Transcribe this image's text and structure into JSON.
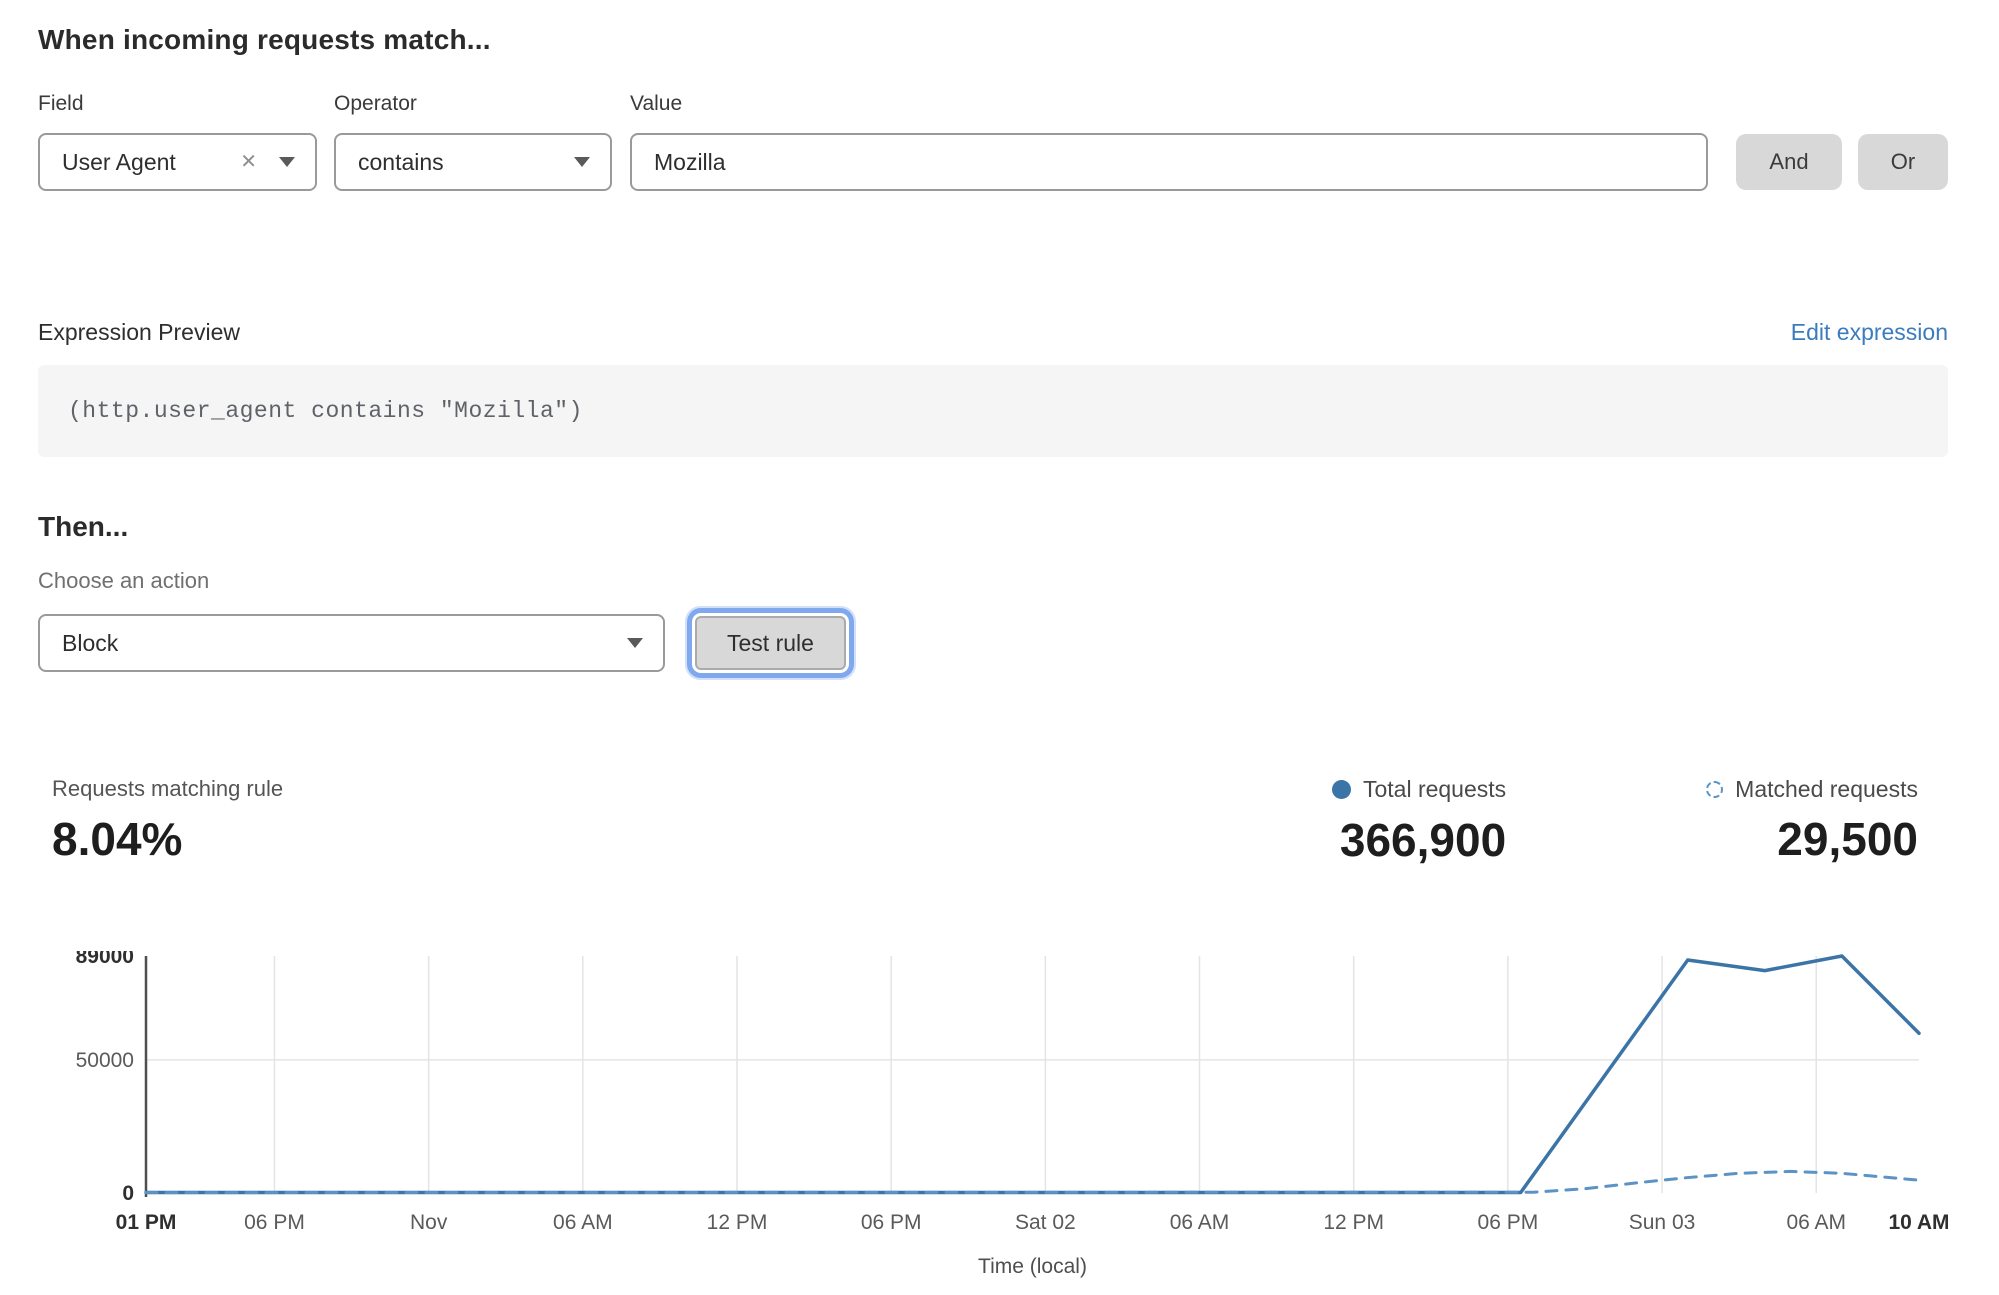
{
  "rule_builder": {
    "heading": "When incoming requests match...",
    "field": {
      "label": "Field",
      "value": "User Agent"
    },
    "operator": {
      "label": "Operator",
      "value": "contains"
    },
    "value": {
      "label": "Value",
      "value": "Mozilla"
    },
    "and_button": "And",
    "or_button": "Or"
  },
  "expression": {
    "label": "Expression Preview",
    "edit_link": "Edit expression",
    "code": "(http.user_agent contains \"Mozilla\")"
  },
  "action": {
    "heading": "Then...",
    "choose_label": "Choose an action",
    "selected": "Block",
    "test_button": "Test rule"
  },
  "stats": {
    "matching": {
      "label": "Requests matching rule",
      "value": "8.04%"
    },
    "total": {
      "label": "Total requests",
      "value": "366,900",
      "marker": "solid-dot"
    },
    "matched": {
      "label": "Matched requests",
      "value": "29,500",
      "marker": "dashed-circle"
    }
  },
  "colors": {
    "link_blue": "#3b7cbe",
    "chart_solid_blue": "#3b74a6",
    "chart_dashed_blue": "#5b93c7",
    "button_gray": "#d8d8d8",
    "focus_ring_blue": "#7fa8ee",
    "code_background": "#f5f5f6",
    "gridline": "#e4e4e4"
  },
  "chart_data": {
    "type": "line",
    "title": "",
    "xlabel": "Time (local)",
    "ylabel": "",
    "xlim": [
      0,
      69
    ],
    "ylim": [
      0,
      89000
    ],
    "grid": "vertical-per-tick, horizontal-at-50000",
    "legend_position": "above-right",
    "x_ticks": [
      {
        "h": 0,
        "label": "01 PM",
        "bold": true
      },
      {
        "h": 5,
        "label": "06 PM",
        "bold": false
      },
      {
        "h": 11,
        "label": "Nov",
        "bold": false
      },
      {
        "h": 17,
        "label": "06 AM",
        "bold": false
      },
      {
        "h": 23,
        "label": "12 PM",
        "bold": false
      },
      {
        "h": 29,
        "label": "06 PM",
        "bold": false
      },
      {
        "h": 35,
        "label": "Sat 02",
        "bold": false
      },
      {
        "h": 41,
        "label": "06 AM",
        "bold": false
      },
      {
        "h": 47,
        "label": "12 PM",
        "bold": false
      },
      {
        "h": 53,
        "label": "06 PM",
        "bold": false
      },
      {
        "h": 59,
        "label": "Sun 03",
        "bold": false
      },
      {
        "h": 65,
        "label": "06 AM",
        "bold": false
      },
      {
        "h": 69,
        "label": "10 AM",
        "bold": true
      }
    ],
    "y_ticks": [
      {
        "v": 0,
        "label": "0",
        "bold": true
      },
      {
        "v": 50000,
        "label": "50000",
        "bold": false
      },
      {
        "v": 89000,
        "label": "89000",
        "bold": true
      }
    ],
    "series": [
      {
        "name": "Total requests",
        "style": "solid",
        "color": "#3b74a6",
        "points": [
          [
            0,
            200
          ],
          [
            53.5,
            200
          ],
          [
            60,
            87500
          ],
          [
            63,
            83500
          ],
          [
            66,
            89000
          ],
          [
            69,
            60000
          ]
        ]
      },
      {
        "name": "Matched requests",
        "style": "dashed",
        "color": "#5b93c7",
        "points": [
          [
            0,
            150
          ],
          [
            54,
            300
          ],
          [
            56,
            1600
          ],
          [
            58,
            3800
          ],
          [
            60,
            5800
          ],
          [
            62,
            7400
          ],
          [
            64,
            8100
          ],
          [
            66,
            7400
          ],
          [
            69,
            4800
          ]
        ]
      }
    ]
  }
}
